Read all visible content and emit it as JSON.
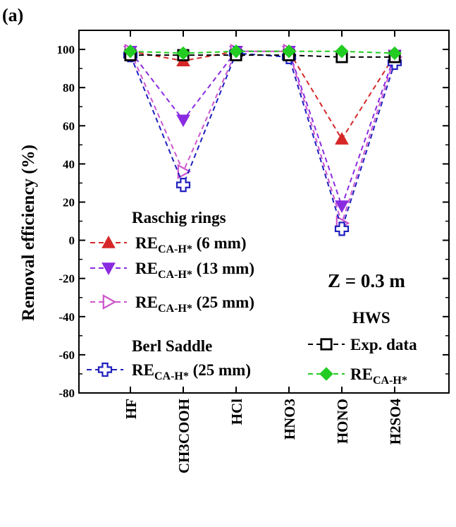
{
  "panel_label": "(a)",
  "annotation": "Z = 0.3 m",
  "legend": {
    "group1_title": "Raschig rings",
    "group2_title": "Berl Saddle",
    "group3_title": "HWS",
    "re_main": "RE",
    "re_sub": "CA-H*",
    "entries": [
      {
        "series": 0,
        "size": "(6 mm)"
      },
      {
        "series": 1,
        "size": "(13 mm)"
      },
      {
        "series": 2,
        "size": "(25 mm)"
      },
      {
        "series": 3,
        "size": "(25 mm)"
      },
      {
        "series": 4,
        "label": "Exp. data"
      },
      {
        "series": 5,
        "size": ""
      }
    ]
  },
  "chart_data": {
    "type": "line",
    "categories": [
      "HF",
      "CH3COOH",
      "HCl",
      "HNO3",
      "HONO",
      "H2SO4"
    ],
    "ylabel": "Removal efficiency (%)",
    "xlabel": "",
    "ylim": [
      -80,
      110
    ],
    "yticks": [
      -80,
      -60,
      -40,
      -20,
      0,
      20,
      40,
      60,
      80,
      100
    ],
    "series": [
      {
        "color": "#d62728",
        "marker": "triangle-up-filled",
        "values": [
          99,
          94,
          99,
          99,
          53,
          97
        ]
      },
      {
        "color": "#8a2be2",
        "marker": "triangle-down-filled",
        "values": [
          99,
          63,
          99,
          99,
          18,
          97
        ]
      },
      {
        "color": "#cc55cc",
        "marker": "triangle-right-open",
        "values": [
          99,
          36,
          99,
          99,
          9,
          96
        ]
      },
      {
        "color": "#1f1fbf",
        "marker": "cross-open",
        "values": [
          97,
          29,
          98,
          96,
          6,
          93
        ]
      },
      {
        "color": "#000000",
        "marker": "square-open",
        "values": [
          97,
          97,
          97,
          97,
          96,
          96
        ]
      },
      {
        "color": "#22cc22",
        "marker": "diamond-filled",
        "values": [
          99,
          98,
          99,
          99,
          99,
          98
        ]
      }
    ]
  }
}
